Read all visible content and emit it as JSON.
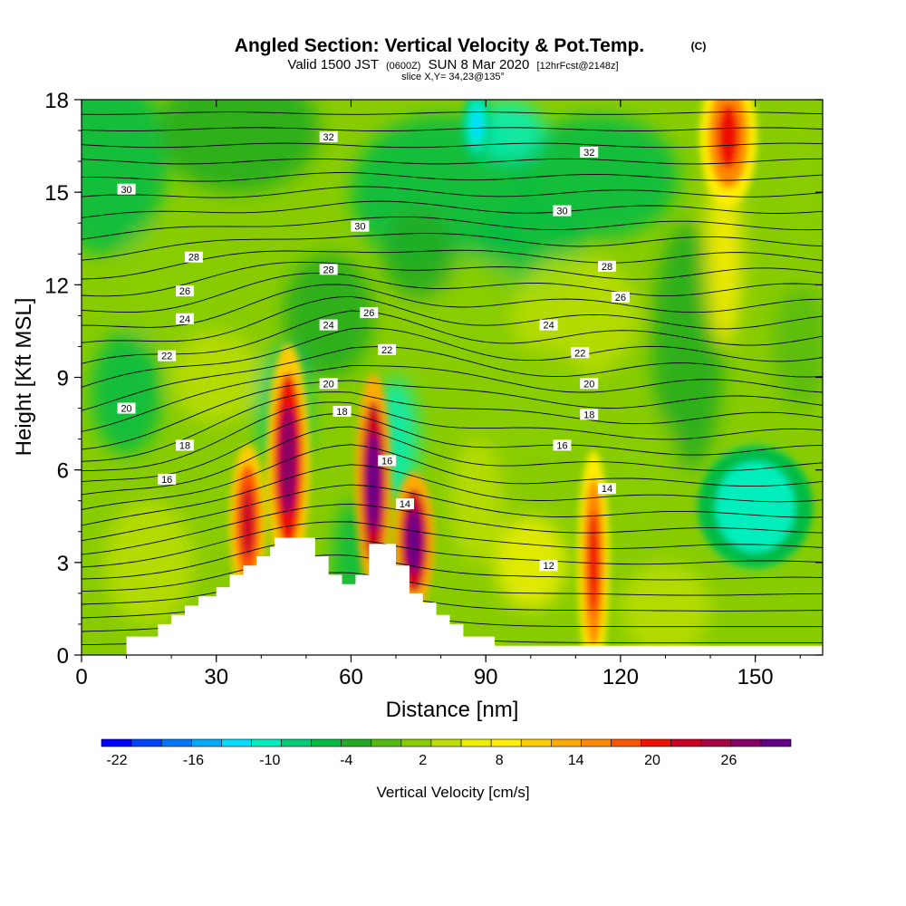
{
  "header": {
    "title": "Angled Section: Vertical Velocity & Pot.Temp.",
    "title_suffix": "(C)",
    "valid_prefix": "Valid 1500 JST",
    "valid_small": "(0600Z)",
    "valid_date": "SUN 8 Mar 2020",
    "valid_fcst": "[12hrFcst@2148z]",
    "slice": "slice X,Y= 34,23@135°"
  },
  "chart_data": {
    "type": "heatmap",
    "xlabel": "Distance [nm]",
    "ylabel": "Height [Kft MSL]",
    "xlim": [
      0,
      165
    ],
    "ylim": [
      0,
      18
    ],
    "x_ticks": [
      0,
      30,
      60,
      90,
      120,
      150
    ],
    "y_ticks": [
      0,
      3,
      6,
      9,
      12,
      15,
      18
    ],
    "colorbar": {
      "label": "Vertical Velocity [cm/s]",
      "tick_labels": [
        "-22",
        "-16",
        "-10",
        "-4",
        "2",
        "8",
        "14",
        "20",
        "26"
      ],
      "colors": [
        "#0000ff",
        "#0044ff",
        "#0077ff",
        "#00aaff",
        "#00ddff",
        "#00eebb",
        "#00cc77",
        "#00bb44",
        "#22aa22",
        "#55bb11",
        "#88cc00",
        "#bbdd00",
        "#eeee00",
        "#ffee00",
        "#ffcc00",
        "#ffaa00",
        "#ff8800",
        "#ff5500",
        "#ee1100",
        "#cc0022",
        "#aa0044",
        "#880066",
        "#660088"
      ]
    },
    "theta_contour_labels": [
      {
        "value": "32",
        "x": 55,
        "y": 16.8
      },
      {
        "value": "32",
        "x": 113,
        "y": 16.3
      },
      {
        "value": "30",
        "x": 10,
        "y": 15.1
      },
      {
        "value": "30",
        "x": 62,
        "y": 13.9
      },
      {
        "value": "30",
        "x": 107,
        "y": 14.4
      },
      {
        "value": "28",
        "x": 25,
        "y": 12.9
      },
      {
        "value": "28",
        "x": 55,
        "y": 12.5
      },
      {
        "value": "28",
        "x": 117,
        "y": 12.6
      },
      {
        "value": "26",
        "x": 23,
        "y": 11.8
      },
      {
        "value": "26",
        "x": 64,
        "y": 11.1
      },
      {
        "value": "26",
        "x": 120,
        "y": 11.6
      },
      {
        "value": "24",
        "x": 23,
        "y": 10.9
      },
      {
        "value": "24",
        "x": 55,
        "y": 10.7
      },
      {
        "value": "24",
        "x": 104,
        "y": 10.7
      },
      {
        "value": "22",
        "x": 19,
        "y": 9.7
      },
      {
        "value": "22",
        "x": 68,
        "y": 9.9
      },
      {
        "value": "22",
        "x": 111,
        "y": 9.8
      },
      {
        "value": "20",
        "x": 10,
        "y": 8.0
      },
      {
        "value": "20",
        "x": 55,
        "y": 8.8
      },
      {
        "value": "20",
        "x": 113,
        "y": 8.8
      },
      {
        "value": "18",
        "x": 23,
        "y": 6.8
      },
      {
        "value": "18",
        "x": 58,
        "y": 7.9
      },
      {
        "value": "18",
        "x": 113,
        "y": 7.8
      },
      {
        "value": "16",
        "x": 19,
        "y": 5.7
      },
      {
        "value": "16",
        "x": 68,
        "y": 6.3
      },
      {
        "value": "16",
        "x": 107,
        "y": 6.8
      },
      {
        "value": "14",
        "x": 72,
        "y": 4.9
      },
      {
        "value": "14",
        "x": 117,
        "y": 5.4
      },
      {
        "value": "12",
        "x": 104,
        "y": 2.9
      }
    ],
    "terrain_profile": [
      [
        0,
        0
      ],
      [
        10,
        0
      ],
      [
        10,
        0.6
      ],
      [
        17,
        0.6
      ],
      [
        17,
        1.0
      ],
      [
        20,
        1.0
      ],
      [
        20,
        1.3
      ],
      [
        23,
        1.3
      ],
      [
        23,
        1.6
      ],
      [
        26,
        1.6
      ],
      [
        26,
        1.9
      ],
      [
        30,
        1.9
      ],
      [
        30,
        2.2
      ],
      [
        33,
        2.2
      ],
      [
        33,
        2.6
      ],
      [
        36,
        2.6
      ],
      [
        36,
        2.9
      ],
      [
        39,
        2.9
      ],
      [
        39,
        3.2
      ],
      [
        42,
        3.2
      ],
      [
        42,
        3.5
      ],
      [
        43,
        3.5
      ],
      [
        43,
        3.8
      ],
      [
        52,
        3.8
      ],
      [
        52,
        3.2
      ],
      [
        55,
        3.2
      ],
      [
        55,
        2.6
      ],
      [
        58,
        2.6
      ],
      [
        58,
        2.3
      ],
      [
        61,
        2.3
      ],
      [
        61,
        2.6
      ],
      [
        64,
        2.6
      ],
      [
        64,
        3.6
      ],
      [
        70,
        3.6
      ],
      [
        70,
        2.9
      ],
      [
        73,
        2.9
      ],
      [
        73,
        2.0
      ],
      [
        76,
        2.0
      ],
      [
        76,
        1.7
      ],
      [
        79,
        1.7
      ],
      [
        79,
        1.3
      ],
      [
        82,
        1.3
      ],
      [
        82,
        1.0
      ],
      [
        85,
        1.0
      ],
      [
        85,
        0.6
      ],
      [
        92,
        0.6
      ],
      [
        92,
        0.3
      ],
      [
        165,
        0.3
      ],
      [
        165,
        0
      ]
    ],
    "velocity_features": [
      {
        "x": 46,
        "y": 6.3,
        "rx": 3,
        "ry": 2.7,
        "value": 26
      },
      {
        "x": 37,
        "y": 4.3,
        "rx": 2.5,
        "ry": 1.8,
        "value": 22
      },
      {
        "x": 65,
        "y": 5.6,
        "rx": 2.5,
        "ry": 2.5,
        "value": 28
      },
      {
        "x": 74,
        "y": 3.7,
        "rx": 2.8,
        "ry": 1.6,
        "value": 30
      },
      {
        "x": 114,
        "y": 3.0,
        "rx": 2.2,
        "ry": 2.6,
        "value": 20
      },
      {
        "x": 144,
        "y": 16.8,
        "rx": 4,
        "ry": 1.6,
        "value": 20
      },
      {
        "x": 150,
        "y": 4.8,
        "rx": 8,
        "ry": 1.4,
        "value": -10
      },
      {
        "x": 88,
        "y": 17.2,
        "rx": 2,
        "ry": 0.8,
        "value": -12
      }
    ]
  }
}
